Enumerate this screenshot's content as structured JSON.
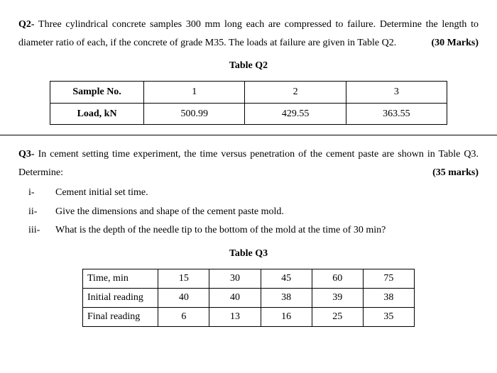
{
  "q2": {
    "label": "Q2-",
    "text": "Three cylindrical concrete samples 300 mm long each are compressed to failure. Determine the length to diameter ratio of each, if the concrete of grade M35. The loads at failure are given in Table Q2.",
    "marks": "(30 Marks)",
    "table_title": "Table Q2",
    "row_headers": [
      "Sample No.",
      "Load, kN"
    ],
    "cols": [
      "1",
      "2",
      "3"
    ],
    "values": [
      "500.99",
      "429.55",
      "363.55"
    ]
  },
  "q3": {
    "label": "Q3-",
    "text": "In cement setting time experiment, the time versus penetration of the cement paste are shown in Table Q3. Determine:",
    "marks": "(35 marks)",
    "items": [
      {
        "num": "i-",
        "text": "Cement initial set time."
      },
      {
        "num": "ii-",
        "text": "Give the dimensions and shape of the cement paste mold."
      },
      {
        "num": "iii-",
        "text": "What is the depth of the needle tip to the bottom of the mold at the time of 30 min?"
      }
    ],
    "table_title": "Table Q3",
    "rows": [
      {
        "label": "Time, min",
        "cells": [
          "15",
          "30",
          "45",
          "60",
          "75"
        ]
      },
      {
        "label": "Initial reading",
        "cells": [
          "40",
          "40",
          "38",
          "39",
          "38"
        ]
      },
      {
        "label": "Final reading",
        "cells": [
          "6",
          "13",
          "16",
          "25",
          "35"
        ]
      }
    ]
  }
}
